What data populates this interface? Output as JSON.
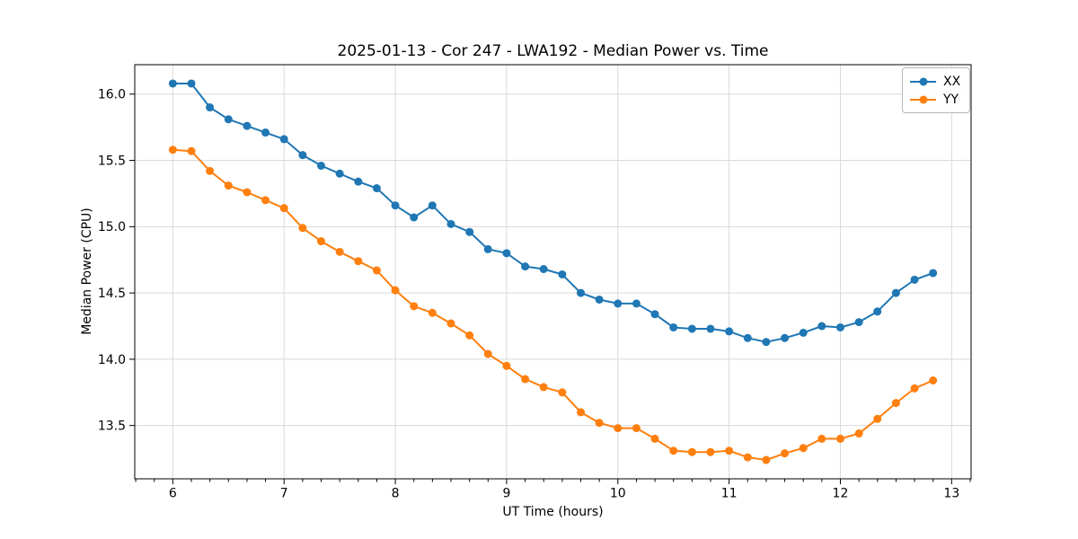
{
  "figure": {
    "background": "#ffffff",
    "spine_color": "#000000",
    "grid_color": "#d9d9d9",
    "tick_color": "#000000"
  },
  "chart_data": {
    "type": "line",
    "title": "2025-01-13 - Cor 247 - LWA192 - Median Power vs. Time",
    "xlabel": "UT Time (hours)",
    "ylabel": "Median Power (CPU)",
    "xlim": [
      5.658,
      13.175
    ],
    "ylim": [
      13.098,
      16.222
    ],
    "x_ticks": [
      6,
      7,
      8,
      9,
      10,
      11,
      12,
      13
    ],
    "y_ticks": [
      13.5,
      14.0,
      14.5,
      15.0,
      15.5,
      16.0
    ],
    "x_minor_tick_step": 0.16667,
    "grid": true,
    "legend_position": "upper right",
    "marker": "circle",
    "x": [
      6.0,
      6.167,
      6.333,
      6.5,
      6.667,
      6.833,
      7.0,
      7.167,
      7.333,
      7.5,
      7.667,
      7.833,
      8.0,
      8.167,
      8.333,
      8.5,
      8.667,
      8.833,
      9.0,
      9.167,
      9.333,
      9.5,
      9.667,
      9.833,
      10.0,
      10.167,
      10.333,
      10.5,
      10.667,
      10.833,
      11.0,
      11.167,
      11.333,
      11.5,
      11.667,
      11.833,
      12.0,
      12.167,
      12.333,
      12.5,
      12.667,
      12.833
    ],
    "series": [
      {
        "name": "XX",
        "color": "#1f77b4",
        "values": [
          16.08,
          16.08,
          15.9,
          15.81,
          15.76,
          15.71,
          15.66,
          15.54,
          15.46,
          15.4,
          15.34,
          15.29,
          15.16,
          15.07,
          15.16,
          15.02,
          14.96,
          14.83,
          14.8,
          14.7,
          14.68,
          14.64,
          14.5,
          14.45,
          14.42,
          14.42,
          14.34,
          14.24,
          14.23,
          14.23,
          14.21,
          14.16,
          14.13,
          14.16,
          14.2,
          14.25,
          14.24,
          14.28,
          14.36,
          14.5,
          14.6,
          14.65
        ]
      },
      {
        "name": "YY",
        "color": "#ff7f0e",
        "values": [
          15.58,
          15.57,
          15.42,
          15.31,
          15.26,
          15.2,
          15.14,
          14.99,
          14.89,
          14.81,
          14.74,
          14.67,
          14.52,
          14.4,
          14.35,
          14.27,
          14.18,
          14.04,
          13.95,
          13.85,
          13.79,
          13.75,
          13.6,
          13.52,
          13.48,
          13.48,
          13.4,
          13.31,
          13.3,
          13.3,
          13.31,
          13.26,
          13.24,
          13.29,
          13.33,
          13.4,
          13.4,
          13.44,
          13.55,
          13.67,
          13.78,
          13.84
        ]
      }
    ]
  }
}
